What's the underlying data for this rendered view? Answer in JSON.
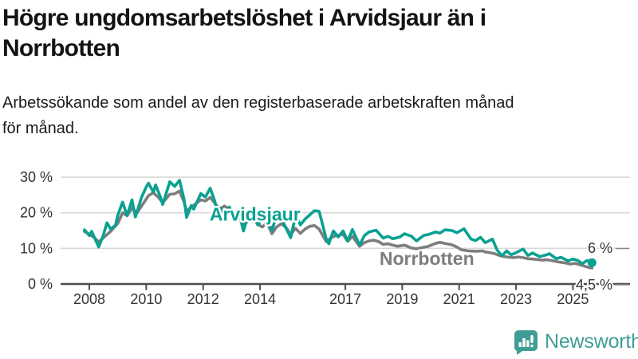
{
  "title": "Högre ungdomsarbetslöshet i Arvidsjaur än i\nNorrbotten",
  "subtitle": "Arbetssökande som andel av den registerbaserade arbetskraften månad\nför månad.",
  "branding": {
    "logo_text": "Newsworthy",
    "logo_icon": "bar-chart-speech-bubble-icon"
  },
  "colors": {
    "arvidsjaur": "#0aa191",
    "norrbotten": "#7d7d7d",
    "axis": "#4d4d4d",
    "grid": "#d8d8d8",
    "tick_text": "#333333",
    "logo": "#3f9d96",
    "title_text": "#141414"
  },
  "chart_data": {
    "type": "line",
    "title": "Högre ungdomsarbetslöshet i Arvidsjaur än i Norrbotten",
    "subtitle": "Arbetssökande som andel av den registerbaserade arbetskraften månad för månad.",
    "xlabel": "",
    "ylabel": "",
    "unit": "%",
    "xlim": [
      2007.7,
      2026.2
    ],
    "ylim": [
      0,
      33
    ],
    "grid": "horizontal",
    "legend_position": "inline-labels",
    "x_ticks": [
      2008,
      2010,
      2012,
      2014,
      2017,
      2019,
      2021,
      2023,
      2025
    ],
    "y_ticks": [
      {
        "v": 0,
        "label": "0 %"
      },
      {
        "v": 10,
        "label": "10 %"
      },
      {
        "v": 20,
        "label": "20 %"
      },
      {
        "v": 30,
        "label": "30 %"
      }
    ],
    "end_labels": [
      {
        "series": "Arvidsjaur",
        "text": "6 %"
      },
      {
        "series": "Norrbotten",
        "text": "4,5 %"
      }
    ],
    "end_dot": {
      "series": "Arvidsjaur",
      "x": 2025.67,
      "y": 6.0
    },
    "series": [
      {
        "name": "Norrbotten",
        "color_key": "norrbotten",
        "label_x": 2018.2,
        "label_y": 7.2,
        "points": [
          [
            2007.83,
            14.7
          ],
          [
            2008.0,
            14.0
          ],
          [
            2008.17,
            13.0
          ],
          [
            2008.33,
            11.8
          ],
          [
            2008.5,
            13.0
          ],
          [
            2008.75,
            14.8
          ],
          [
            2009.0,
            17.0
          ],
          [
            2009.17,
            20.0
          ],
          [
            2009.33,
            19.2
          ],
          [
            2009.5,
            21.3
          ],
          [
            2009.67,
            19.9
          ],
          [
            2009.83,
            21.8
          ],
          [
            2010.08,
            24.8
          ],
          [
            2010.25,
            25.6
          ],
          [
            2010.42,
            24.4
          ],
          [
            2010.58,
            22.8
          ],
          [
            2010.83,
            25.2
          ],
          [
            2011.0,
            25.3
          ],
          [
            2011.17,
            26.1
          ],
          [
            2011.33,
            23.0
          ],
          [
            2011.42,
            20.4
          ],
          [
            2011.58,
            21.6
          ],
          [
            2011.75,
            22.6
          ],
          [
            2011.92,
            23.6
          ],
          [
            2012.08,
            23.3
          ],
          [
            2012.25,
            24.3
          ],
          [
            2012.42,
            22.6
          ],
          [
            2012.58,
            21.0
          ],
          [
            2012.75,
            21.9
          ],
          [
            2012.92,
            21.0
          ],
          [
            2013.08,
            18.8
          ],
          [
            2013.25,
            19.6
          ],
          [
            2013.42,
            16.4
          ],
          [
            2013.58,
            17.8
          ],
          [
            2013.75,
            18.4
          ],
          [
            2013.92,
            16.8
          ],
          [
            2014.08,
            16.0
          ],
          [
            2014.25,
            17.2
          ],
          [
            2014.42,
            14.1
          ],
          [
            2014.58,
            16.0
          ],
          [
            2014.75,
            16.9
          ],
          [
            2014.92,
            15.8
          ],
          [
            2015.08,
            13.9
          ],
          [
            2015.25,
            15.6
          ],
          [
            2015.42,
            14.2
          ],
          [
            2015.58,
            15.4
          ],
          [
            2015.75,
            16.2
          ],
          [
            2015.92,
            16.4
          ],
          [
            2016.08,
            15.4
          ],
          [
            2016.33,
            11.9
          ],
          [
            2016.5,
            13.0
          ],
          [
            2016.67,
            13.6
          ],
          [
            2016.92,
            13.9
          ],
          [
            2017.08,
            12.0
          ],
          [
            2017.25,
            13.4
          ],
          [
            2017.5,
            10.6
          ],
          [
            2017.67,
            11.6
          ],
          [
            2017.83,
            12.1
          ],
          [
            2018.0,
            12.3
          ],
          [
            2018.17,
            11.9
          ],
          [
            2018.33,
            11.1
          ],
          [
            2018.5,
            11.3
          ],
          [
            2018.67,
            10.9
          ],
          [
            2018.83,
            10.6
          ],
          [
            2019.08,
            10.9
          ],
          [
            2019.33,
            10.1
          ],
          [
            2019.5,
            9.9
          ],
          [
            2019.75,
            10.3
          ],
          [
            2019.92,
            10.6
          ],
          [
            2020.17,
            11.4
          ],
          [
            2020.33,
            11.7
          ],
          [
            2020.5,
            11.4
          ],
          [
            2020.75,
            11.0
          ],
          [
            2020.92,
            10.4
          ],
          [
            2021.08,
            9.6
          ],
          [
            2021.33,
            9.3
          ],
          [
            2021.58,
            9.2
          ],
          [
            2021.83,
            9.3
          ],
          [
            2021.92,
            9.0
          ],
          [
            2022.08,
            8.8
          ],
          [
            2022.25,
            8.5
          ],
          [
            2022.42,
            8.0
          ],
          [
            2022.58,
            7.7
          ],
          [
            2022.75,
            7.5
          ],
          [
            2022.92,
            7.4
          ],
          [
            2023.08,
            7.6
          ],
          [
            2023.25,
            7.4
          ],
          [
            2023.42,
            7.1
          ],
          [
            2023.58,
            7.0
          ],
          [
            2023.75,
            6.9
          ],
          [
            2023.92,
            6.7
          ],
          [
            2024.08,
            6.8
          ],
          [
            2024.25,
            6.6
          ],
          [
            2024.42,
            6.3
          ],
          [
            2024.58,
            6.1
          ],
          [
            2024.75,
            5.9
          ],
          [
            2024.92,
            5.6
          ],
          [
            2025.08,
            5.8
          ],
          [
            2025.25,
            5.4
          ],
          [
            2025.42,
            5.0
          ],
          [
            2025.58,
            4.6
          ],
          [
            2025.67,
            4.5
          ]
        ]
      },
      {
        "name": "Arvidsjaur",
        "color_key": "arvidsjaur",
        "label_x": 2012.23,
        "label_y": 19.6,
        "points": [
          [
            2007.83,
            15.2
          ],
          [
            2008.0,
            13.6
          ],
          [
            2008.08,
            14.8
          ],
          [
            2008.33,
            10.4
          ],
          [
            2008.5,
            13.9
          ],
          [
            2008.62,
            17.2
          ],
          [
            2008.75,
            15.4
          ],
          [
            2008.92,
            16.5
          ],
          [
            2009.0,
            19.3
          ],
          [
            2009.17,
            23.0
          ],
          [
            2009.33,
            19.2
          ],
          [
            2009.5,
            23.6
          ],
          [
            2009.62,
            18.8
          ],
          [
            2009.83,
            24.2
          ],
          [
            2010.0,
            27.2
          ],
          [
            2010.08,
            28.3
          ],
          [
            2010.25,
            25.8
          ],
          [
            2010.33,
            27.8
          ],
          [
            2010.5,
            24.4
          ],
          [
            2010.58,
            22.3
          ],
          [
            2010.83,
            28.7
          ],
          [
            2011.0,
            27.4
          ],
          [
            2011.17,
            29.1
          ],
          [
            2011.33,
            23.8
          ],
          [
            2011.42,
            18.7
          ],
          [
            2011.58,
            22.0
          ],
          [
            2011.67,
            21.0
          ],
          [
            2011.92,
            25.4
          ],
          [
            2012.08,
            24.4
          ],
          [
            2012.25,
            26.9
          ],
          [
            2012.42,
            23.0
          ],
          [
            2012.5,
            19.0
          ],
          [
            2012.58,
            21.4
          ],
          [
            2012.75,
            19.4
          ],
          [
            2012.92,
            21.6
          ],
          [
            2013.08,
            19.2
          ],
          [
            2013.25,
            20.2
          ],
          [
            2013.42,
            14.9
          ],
          [
            2013.58,
            19.3
          ],
          [
            2013.75,
            17.6
          ],
          [
            2013.83,
            18.8
          ],
          [
            2013.92,
            16.6
          ],
          [
            2014.17,
            19.0
          ],
          [
            2014.42,
            15.1
          ],
          [
            2014.58,
            19.2
          ],
          [
            2014.75,
            18.4
          ],
          [
            2014.92,
            15.6
          ],
          [
            2015.08,
            13.0
          ],
          [
            2015.25,
            19.2
          ],
          [
            2015.42,
            16.6
          ],
          [
            2015.58,
            18.2
          ],
          [
            2015.75,
            19.4
          ],
          [
            2015.92,
            20.6
          ],
          [
            2016.08,
            20.4
          ],
          [
            2016.33,
            12.6
          ],
          [
            2016.42,
            11.3
          ],
          [
            2016.58,
            14.9
          ],
          [
            2016.75,
            13.2
          ],
          [
            2016.92,
            14.9
          ],
          [
            2017.08,
            12.1
          ],
          [
            2017.25,
            15.3
          ],
          [
            2017.5,
            10.9
          ],
          [
            2017.67,
            13.6
          ],
          [
            2017.83,
            14.6
          ],
          [
            2018.08,
            15.1
          ],
          [
            2018.33,
            12.9
          ],
          [
            2018.5,
            13.4
          ],
          [
            2018.67,
            12.7
          ],
          [
            2018.92,
            13.2
          ],
          [
            2019.08,
            14.1
          ],
          [
            2019.33,
            13.4
          ],
          [
            2019.5,
            12.1
          ],
          [
            2019.75,
            13.6
          ],
          [
            2019.92,
            13.9
          ],
          [
            2020.17,
            14.6
          ],
          [
            2020.33,
            14.3
          ],
          [
            2020.5,
            15.2
          ],
          [
            2020.75,
            15.0
          ],
          [
            2020.92,
            14.4
          ],
          [
            2021.17,
            15.5
          ],
          [
            2021.42,
            12.6
          ],
          [
            2021.58,
            12.2
          ],
          [
            2021.75,
            13.1
          ],
          [
            2021.92,
            11.6
          ],
          [
            2022.17,
            12.6
          ],
          [
            2022.33,
            9.6
          ],
          [
            2022.5,
            7.9
          ],
          [
            2022.67,
            9.3
          ],
          [
            2022.83,
            8.2
          ],
          [
            2023.0,
            8.8
          ],
          [
            2023.25,
            9.8
          ],
          [
            2023.42,
            8.0
          ],
          [
            2023.58,
            8.7
          ],
          [
            2023.83,
            7.7
          ],
          [
            2024.08,
            8.2
          ],
          [
            2024.17,
            8.5
          ],
          [
            2024.42,
            7.1
          ],
          [
            2024.58,
            7.5
          ],
          [
            2024.83,
            6.5
          ],
          [
            2025.0,
            7.0
          ],
          [
            2025.17,
            6.6
          ],
          [
            2025.33,
            5.7
          ],
          [
            2025.5,
            6.6
          ],
          [
            2025.67,
            6.0
          ]
        ]
      }
    ]
  }
}
